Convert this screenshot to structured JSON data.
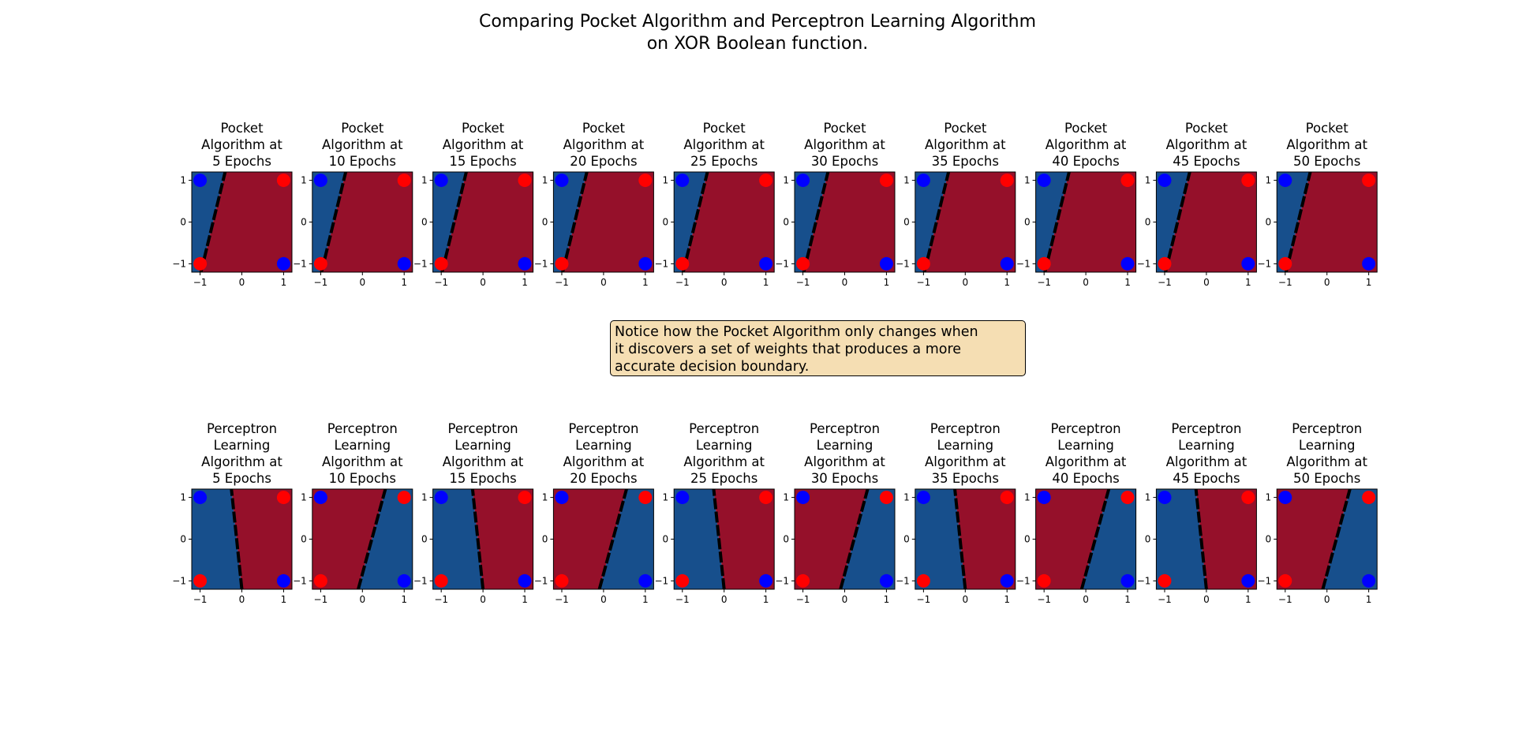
{
  "figure": {
    "title_lines": [
      "Comparing Pocket Algorithm and Perceptron Learning Algorithm",
      "on XOR Boolean function."
    ],
    "note_lines": [
      "Notice how the Pocket Algorithm only changes when",
      "it discovers a set of weights that produces a more",
      "accurate decision boundary."
    ]
  },
  "colors": {
    "blue_region": "#174f8c",
    "red_region": "#95102a",
    "point_blue": "#0000ff",
    "point_red": "#ff0000",
    "boundary": "#000000",
    "note_background": "#f5deb3"
  },
  "chart_data": [
    {
      "type": "scatter",
      "row": "pocket",
      "title_lines": [
        "Pocket",
        "Algorithm at",
        "5 Epochs"
      ],
      "xlim": [
        -1.2,
        1.2
      ],
      "ylim": [
        -1.2,
        1.2
      ],
      "xticks": [
        -1,
        0,
        1
      ],
      "yticks": [
        -1,
        0,
        1
      ],
      "points": [
        {
          "x": -1,
          "y": 1,
          "class": "blue"
        },
        {
          "x": 1,
          "y": 1,
          "class": "red"
        },
        {
          "x": -1,
          "y": -1,
          "class": "red"
        },
        {
          "x": 1,
          "y": -1,
          "class": "blue"
        }
      ],
      "boundary": {
        "x_at_ylow": -0.98,
        "x_at_yhigh": -0.4
      },
      "left_side": "blue",
      "right_side": "red"
    },
    {
      "type": "scatter",
      "row": "pocket",
      "title_lines": [
        "Pocket",
        "Algorithm at",
        "10 Epochs"
      ],
      "xlim": [
        -1.2,
        1.2
      ],
      "ylim": [
        -1.2,
        1.2
      ],
      "xticks": [
        -1,
        0,
        1
      ],
      "yticks": [
        -1,
        0,
        1
      ],
      "points": [
        {
          "x": -1,
          "y": 1,
          "class": "blue"
        },
        {
          "x": 1,
          "y": 1,
          "class": "red"
        },
        {
          "x": -1,
          "y": -1,
          "class": "red"
        },
        {
          "x": 1,
          "y": -1,
          "class": "blue"
        }
      ],
      "boundary": {
        "x_at_ylow": -0.98,
        "x_at_yhigh": -0.4
      },
      "left_side": "blue",
      "right_side": "red"
    },
    {
      "type": "scatter",
      "row": "pocket",
      "title_lines": [
        "Pocket",
        "Algorithm at",
        "15 Epochs"
      ],
      "xlim": [
        -1.2,
        1.2
      ],
      "ylim": [
        -1.2,
        1.2
      ],
      "xticks": [
        -1,
        0,
        1
      ],
      "yticks": [
        -1,
        0,
        1
      ],
      "points": [
        {
          "x": -1,
          "y": 1,
          "class": "blue"
        },
        {
          "x": 1,
          "y": 1,
          "class": "red"
        },
        {
          "x": -1,
          "y": -1,
          "class": "red"
        },
        {
          "x": 1,
          "y": -1,
          "class": "blue"
        }
      ],
      "boundary": {
        "x_at_ylow": -0.98,
        "x_at_yhigh": -0.4
      },
      "left_side": "blue",
      "right_side": "red"
    },
    {
      "type": "scatter",
      "row": "pocket",
      "title_lines": [
        "Pocket",
        "Algorithm at",
        "20 Epochs"
      ],
      "xlim": [
        -1.2,
        1.2
      ],
      "ylim": [
        -1.2,
        1.2
      ],
      "xticks": [
        -1,
        0,
        1
      ],
      "yticks": [
        -1,
        0,
        1
      ],
      "points": [
        {
          "x": -1,
          "y": 1,
          "class": "blue"
        },
        {
          "x": 1,
          "y": 1,
          "class": "red"
        },
        {
          "x": -1,
          "y": -1,
          "class": "red"
        },
        {
          "x": 1,
          "y": -1,
          "class": "blue"
        }
      ],
      "boundary": {
        "x_at_ylow": -0.98,
        "x_at_yhigh": -0.4
      },
      "left_side": "blue",
      "right_side": "red"
    },
    {
      "type": "scatter",
      "row": "pocket",
      "title_lines": [
        "Pocket",
        "Algorithm at",
        "25 Epochs"
      ],
      "xlim": [
        -1.2,
        1.2
      ],
      "ylim": [
        -1.2,
        1.2
      ],
      "xticks": [
        -1,
        0,
        1
      ],
      "yticks": [
        -1,
        0,
        1
      ],
      "points": [
        {
          "x": -1,
          "y": 1,
          "class": "blue"
        },
        {
          "x": 1,
          "y": 1,
          "class": "red"
        },
        {
          "x": -1,
          "y": -1,
          "class": "red"
        },
        {
          "x": 1,
          "y": -1,
          "class": "blue"
        }
      ],
      "boundary": {
        "x_at_ylow": -0.98,
        "x_at_yhigh": -0.4
      },
      "left_side": "blue",
      "right_side": "red"
    },
    {
      "type": "scatter",
      "row": "pocket",
      "title_lines": [
        "Pocket",
        "Algorithm at",
        "30 Epochs"
      ],
      "xlim": [
        -1.2,
        1.2
      ],
      "ylim": [
        -1.2,
        1.2
      ],
      "xticks": [
        -1,
        0,
        1
      ],
      "yticks": [
        -1,
        0,
        1
      ],
      "points": [
        {
          "x": -1,
          "y": 1,
          "class": "blue"
        },
        {
          "x": 1,
          "y": 1,
          "class": "red"
        },
        {
          "x": -1,
          "y": -1,
          "class": "red"
        },
        {
          "x": 1,
          "y": -1,
          "class": "blue"
        }
      ],
      "boundary": {
        "x_at_ylow": -0.98,
        "x_at_yhigh": -0.4
      },
      "left_side": "blue",
      "right_side": "red"
    },
    {
      "type": "scatter",
      "row": "pocket",
      "title_lines": [
        "Pocket",
        "Algorithm at",
        "35 Epochs"
      ],
      "xlim": [
        -1.2,
        1.2
      ],
      "ylim": [
        -1.2,
        1.2
      ],
      "xticks": [
        -1,
        0,
        1
      ],
      "yticks": [
        -1,
        0,
        1
      ],
      "points": [
        {
          "x": -1,
          "y": 1,
          "class": "blue"
        },
        {
          "x": 1,
          "y": 1,
          "class": "red"
        },
        {
          "x": -1,
          "y": -1,
          "class": "red"
        },
        {
          "x": 1,
          "y": -1,
          "class": "blue"
        }
      ],
      "boundary": {
        "x_at_ylow": -0.98,
        "x_at_yhigh": -0.4
      },
      "left_side": "blue",
      "right_side": "red"
    },
    {
      "type": "scatter",
      "row": "pocket",
      "title_lines": [
        "Pocket",
        "Algorithm at",
        "40 Epochs"
      ],
      "xlim": [
        -1.2,
        1.2
      ],
      "ylim": [
        -1.2,
        1.2
      ],
      "xticks": [
        -1,
        0,
        1
      ],
      "yticks": [
        -1,
        0,
        1
      ],
      "points": [
        {
          "x": -1,
          "y": 1,
          "class": "blue"
        },
        {
          "x": 1,
          "y": 1,
          "class": "red"
        },
        {
          "x": -1,
          "y": -1,
          "class": "red"
        },
        {
          "x": 1,
          "y": -1,
          "class": "blue"
        }
      ],
      "boundary": {
        "x_at_ylow": -0.98,
        "x_at_yhigh": -0.4
      },
      "left_side": "blue",
      "right_side": "red"
    },
    {
      "type": "scatter",
      "row": "pocket",
      "title_lines": [
        "Pocket",
        "Algorithm at",
        "45 Epochs"
      ],
      "xlim": [
        -1.2,
        1.2
      ],
      "ylim": [
        -1.2,
        1.2
      ],
      "xticks": [
        -1,
        0,
        1
      ],
      "yticks": [
        -1,
        0,
        1
      ],
      "points": [
        {
          "x": -1,
          "y": 1,
          "class": "blue"
        },
        {
          "x": 1,
          "y": 1,
          "class": "red"
        },
        {
          "x": -1,
          "y": -1,
          "class": "red"
        },
        {
          "x": 1,
          "y": -1,
          "class": "blue"
        }
      ],
      "boundary": {
        "x_at_ylow": -0.98,
        "x_at_yhigh": -0.4
      },
      "left_side": "blue",
      "right_side": "red"
    },
    {
      "type": "scatter",
      "row": "pocket",
      "title_lines": [
        "Pocket",
        "Algorithm at",
        "50 Epochs"
      ],
      "xlim": [
        -1.2,
        1.2
      ],
      "ylim": [
        -1.2,
        1.2
      ],
      "xticks": [
        -1,
        0,
        1
      ],
      "yticks": [
        -1,
        0,
        1
      ],
      "points": [
        {
          "x": -1,
          "y": 1,
          "class": "blue"
        },
        {
          "x": 1,
          "y": 1,
          "class": "red"
        },
        {
          "x": -1,
          "y": -1,
          "class": "red"
        },
        {
          "x": 1,
          "y": -1,
          "class": "blue"
        }
      ],
      "boundary": {
        "x_at_ylow": -0.98,
        "x_at_yhigh": -0.4
      },
      "left_side": "blue",
      "right_side": "red"
    },
    {
      "type": "scatter",
      "row": "perceptron",
      "title_lines": [
        "Perceptron",
        "Learning",
        "Algorithm at",
        "5 Epochs"
      ],
      "xlim": [
        -1.2,
        1.2
      ],
      "ylim": [
        -1.2,
        1.2
      ],
      "xticks": [
        -1,
        0,
        1
      ],
      "yticks": [
        -1,
        0,
        1
      ],
      "points": [
        {
          "x": -1,
          "y": 1,
          "class": "blue"
        },
        {
          "x": 1,
          "y": 1,
          "class": "red"
        },
        {
          "x": -1,
          "y": -1,
          "class": "red"
        },
        {
          "x": 1,
          "y": -1,
          "class": "blue"
        }
      ],
      "boundary": {
        "x_at_ylow": 0.0,
        "x_at_yhigh": -0.25
      },
      "left_side": "blue",
      "right_side": "red"
    },
    {
      "type": "scatter",
      "row": "perceptron",
      "title_lines": [
        "Perceptron",
        "Learning",
        "Algorithm at",
        "10 Epochs"
      ],
      "xlim": [
        -1.2,
        1.2
      ],
      "ylim": [
        -1.2,
        1.2
      ],
      "xticks": [
        -1,
        0,
        1
      ],
      "yticks": [
        -1,
        0,
        1
      ],
      "points": [
        {
          "x": -1,
          "y": 1,
          "class": "blue"
        },
        {
          "x": 1,
          "y": 1,
          "class": "red"
        },
        {
          "x": -1,
          "y": -1,
          "class": "red"
        },
        {
          "x": 1,
          "y": -1,
          "class": "blue"
        }
      ],
      "boundary": {
        "x_at_ylow": -0.1,
        "x_at_yhigh": 0.55
      },
      "left_side": "red",
      "right_side": "blue"
    },
    {
      "type": "scatter",
      "row": "perceptron",
      "title_lines": [
        "Perceptron",
        "Learning",
        "Algorithm at",
        "15 Epochs"
      ],
      "xlim": [
        -1.2,
        1.2
      ],
      "ylim": [
        -1.2,
        1.2
      ],
      "xticks": [
        -1,
        0,
        1
      ],
      "yticks": [
        -1,
        0,
        1
      ],
      "points": [
        {
          "x": -1,
          "y": 1,
          "class": "blue"
        },
        {
          "x": 1,
          "y": 1,
          "class": "red"
        },
        {
          "x": -1,
          "y": -1,
          "class": "red"
        },
        {
          "x": 1,
          "y": -1,
          "class": "blue"
        }
      ],
      "boundary": {
        "x_at_ylow": 0.0,
        "x_at_yhigh": -0.25
      },
      "left_side": "blue",
      "right_side": "red"
    },
    {
      "type": "scatter",
      "row": "perceptron",
      "title_lines": [
        "Perceptron",
        "Learning",
        "Algorithm at",
        "20 Epochs"
      ],
      "xlim": [
        -1.2,
        1.2
      ],
      "ylim": [
        -1.2,
        1.2
      ],
      "xticks": [
        -1,
        0,
        1
      ],
      "yticks": [
        -1,
        0,
        1
      ],
      "points": [
        {
          "x": -1,
          "y": 1,
          "class": "blue"
        },
        {
          "x": 1,
          "y": 1,
          "class": "red"
        },
        {
          "x": -1,
          "y": -1,
          "class": "red"
        },
        {
          "x": 1,
          "y": -1,
          "class": "blue"
        }
      ],
      "boundary": {
        "x_at_ylow": -0.1,
        "x_at_yhigh": 0.55
      },
      "left_side": "red",
      "right_side": "blue"
    },
    {
      "type": "scatter",
      "row": "perceptron",
      "title_lines": [
        "Perceptron",
        "Learning",
        "Algorithm at",
        "25 Epochs"
      ],
      "xlim": [
        -1.2,
        1.2
      ],
      "ylim": [
        -1.2,
        1.2
      ],
      "xticks": [
        -1,
        0,
        1
      ],
      "yticks": [
        -1,
        0,
        1
      ],
      "points": [
        {
          "x": -1,
          "y": 1,
          "class": "blue"
        },
        {
          "x": 1,
          "y": 1,
          "class": "red"
        },
        {
          "x": -1,
          "y": -1,
          "class": "red"
        },
        {
          "x": 1,
          "y": -1,
          "class": "blue"
        }
      ],
      "boundary": {
        "x_at_ylow": 0.0,
        "x_at_yhigh": -0.25
      },
      "left_side": "blue",
      "right_side": "red"
    },
    {
      "type": "scatter",
      "row": "perceptron",
      "title_lines": [
        "Perceptron",
        "Learning",
        "Algorithm at",
        "30 Epochs"
      ],
      "xlim": [
        -1.2,
        1.2
      ],
      "ylim": [
        -1.2,
        1.2
      ],
      "xticks": [
        -1,
        0,
        1
      ],
      "yticks": [
        -1,
        0,
        1
      ],
      "points": [
        {
          "x": -1,
          "y": 1,
          "class": "blue"
        },
        {
          "x": 1,
          "y": 1,
          "class": "red"
        },
        {
          "x": -1,
          "y": -1,
          "class": "red"
        },
        {
          "x": 1,
          "y": -1,
          "class": "blue"
        }
      ],
      "boundary": {
        "x_at_ylow": -0.1,
        "x_at_yhigh": 0.55
      },
      "left_side": "red",
      "right_side": "blue"
    },
    {
      "type": "scatter",
      "row": "perceptron",
      "title_lines": [
        "Perceptron",
        "Learning",
        "Algorithm at",
        "35 Epochs"
      ],
      "xlim": [
        -1.2,
        1.2
      ],
      "ylim": [
        -1.2,
        1.2
      ],
      "xticks": [
        -1,
        0,
        1
      ],
      "yticks": [
        -1,
        0,
        1
      ],
      "points": [
        {
          "x": -1,
          "y": 1,
          "class": "blue"
        },
        {
          "x": 1,
          "y": 1,
          "class": "red"
        },
        {
          "x": -1,
          "y": -1,
          "class": "red"
        },
        {
          "x": 1,
          "y": -1,
          "class": "blue"
        }
      ],
      "boundary": {
        "x_at_ylow": 0.0,
        "x_at_yhigh": -0.25
      },
      "left_side": "blue",
      "right_side": "red"
    },
    {
      "type": "scatter",
      "row": "perceptron",
      "title_lines": [
        "Perceptron",
        "Learning",
        "Algorithm at",
        "40 Epochs"
      ],
      "xlim": [
        -1.2,
        1.2
      ],
      "ylim": [
        -1.2,
        1.2
      ],
      "xticks": [
        -1,
        0,
        1
      ],
      "yticks": [
        -1,
        0,
        1
      ],
      "points": [
        {
          "x": -1,
          "y": 1,
          "class": "blue"
        },
        {
          "x": 1,
          "y": 1,
          "class": "red"
        },
        {
          "x": -1,
          "y": -1,
          "class": "red"
        },
        {
          "x": 1,
          "y": -1,
          "class": "blue"
        }
      ],
      "boundary": {
        "x_at_ylow": -0.1,
        "x_at_yhigh": 0.55
      },
      "left_side": "red",
      "right_side": "blue"
    },
    {
      "type": "scatter",
      "row": "perceptron",
      "title_lines": [
        "Perceptron",
        "Learning",
        "Algorithm at",
        "45 Epochs"
      ],
      "xlim": [
        -1.2,
        1.2
      ],
      "ylim": [
        -1.2,
        1.2
      ],
      "xticks": [
        -1,
        0,
        1
      ],
      "yticks": [
        -1,
        0,
        1
      ],
      "points": [
        {
          "x": -1,
          "y": 1,
          "class": "blue"
        },
        {
          "x": 1,
          "y": 1,
          "class": "red"
        },
        {
          "x": -1,
          "y": -1,
          "class": "red"
        },
        {
          "x": 1,
          "y": -1,
          "class": "blue"
        }
      ],
      "boundary": {
        "x_at_ylow": 0.0,
        "x_at_yhigh": -0.25
      },
      "left_side": "blue",
      "right_side": "red"
    },
    {
      "type": "scatter",
      "row": "perceptron",
      "title_lines": [
        "Perceptron",
        "Learning",
        "Algorithm at",
        "50 Epochs"
      ],
      "xlim": [
        -1.2,
        1.2
      ],
      "ylim": [
        -1.2,
        1.2
      ],
      "xticks": [
        -1,
        0,
        1
      ],
      "yticks": [
        -1,
        0,
        1
      ],
      "points": [
        {
          "x": -1,
          "y": 1,
          "class": "blue"
        },
        {
          "x": 1,
          "y": 1,
          "class": "red"
        },
        {
          "x": -1,
          "y": -1,
          "class": "red"
        },
        {
          "x": 1,
          "y": -1,
          "class": "blue"
        }
      ],
      "boundary": {
        "x_at_ylow": -0.1,
        "x_at_yhigh": 0.55
      },
      "left_side": "red",
      "right_side": "blue"
    }
  ]
}
